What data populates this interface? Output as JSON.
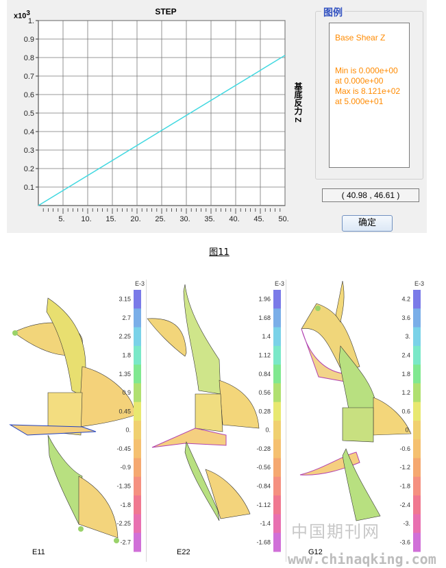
{
  "step_window": {
    "plot_title": "STEP",
    "scale_prefix": "x10",
    "scale_exponent": "3",
    "ylabel": "基底反力 Z",
    "legend_heading": "图例",
    "legend_lines": [
      "Base Shear Z",
      "",
      "Min is 0.000e+00",
      "at 0.000e+00",
      "Max is 8.121e+02",
      "at 5.000e+01"
    ],
    "coordinates": "( 40.98 , 46.61 )",
    "ok_label": "确定",
    "line_color": "#40d8e0"
  },
  "chart_data": {
    "type": "line",
    "title": "STEP",
    "xlabel": "",
    "ylabel": "基底反力 Z",
    "x_tick_labels": [
      "5.",
      "10.",
      "15.",
      "20.",
      "25.",
      "30.",
      "35.",
      "40.",
      "45.",
      "50."
    ],
    "y_tick_labels": [
      "0.1",
      "0.2",
      "0.3",
      "0.4",
      "0.5",
      "0.6",
      "0.7",
      "0.8",
      "0.9",
      "1."
    ],
    "xlim": [
      0,
      50
    ],
    "ylim": [
      0.0,
      1.0
    ],
    "series": [
      {
        "x": [
          0,
          50
        ],
        "y": [
          0.0,
          0.8121
        ]
      }
    ]
  },
  "figure_caption": "图11",
  "panels": [
    {
      "label": "E11",
      "unit": "E-3",
      "ticks": [
        "3.15",
        "2.7",
        "2.25",
        "1.8",
        "1.35",
        "0.9",
        "0.45",
        "0.",
        "-0.45",
        "-0.9",
        "-1.35",
        "-1.8",
        "-2.25",
        "-2.7"
      ]
    },
    {
      "label": "E22",
      "unit": "E-3",
      "ticks": [
        "1.96",
        "1.68",
        "1.4",
        "1.12",
        "0.84",
        "0.56",
        "0.28",
        "0.",
        "-0.28",
        "-0.56",
        "-0.84",
        "-1.12",
        "-1.4",
        "-1.68"
      ]
    },
    {
      "label": "G12",
      "unit": "E-3",
      "ticks": [
        "4.2",
        "3.6",
        "3.",
        "2.4",
        "1.8",
        "1.2",
        "0.6",
        "0.",
        "-0.6",
        "-1.2",
        "-1.8",
        "-2.4",
        "-3.",
        "-3.6"
      ]
    }
  ],
  "watermark": {
    "cn": "中国期刊网",
    "url": "www.chinaqking.com"
  }
}
